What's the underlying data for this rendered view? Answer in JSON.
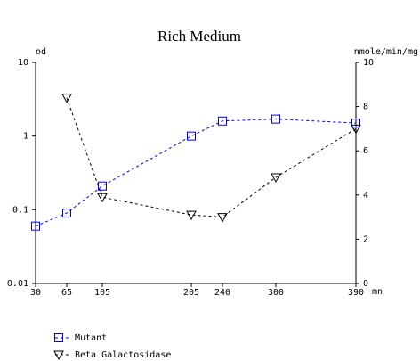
{
  "chart_data": {
    "type": "line",
    "title": "Rich Medium",
    "ylabel": "od",
    "y2label": "nmole/min/mg",
    "xlabel": "mn",
    "xlim": [
      30,
      390
    ],
    "xticks": [
      30,
      65,
      105,
      205,
      240,
      300,
      390
    ],
    "ylim": [
      0.01,
      10
    ],
    "yticks": [
      10,
      1,
      0.1,
      0.01
    ],
    "yscale": "log",
    "y2lim": [
      0,
      10
    ],
    "y2ticks": [
      0,
      2,
      4,
      6,
      8,
      10
    ],
    "series": [
      {
        "name": "Mutant",
        "color": "#0000ff",
        "marker": "square",
        "x": [
          30,
          65,
          105,
          205,
          240,
          300,
          390
        ],
        "values": [
          0.06,
          0.09,
          0.21,
          1,
          1.6,
          1.7,
          1.5
        ]
      },
      {
        "name": "Beta Galactosidase",
        "color": "#000000",
        "marker": "triangle-down",
        "axis": "y2",
        "x": [
          65,
          105,
          205,
          240,
          300,
          390
        ],
        "values": [
          8.4,
          3.9,
          3.1,
          3.0,
          4.8,
          7.0
        ]
      }
    ]
  }
}
